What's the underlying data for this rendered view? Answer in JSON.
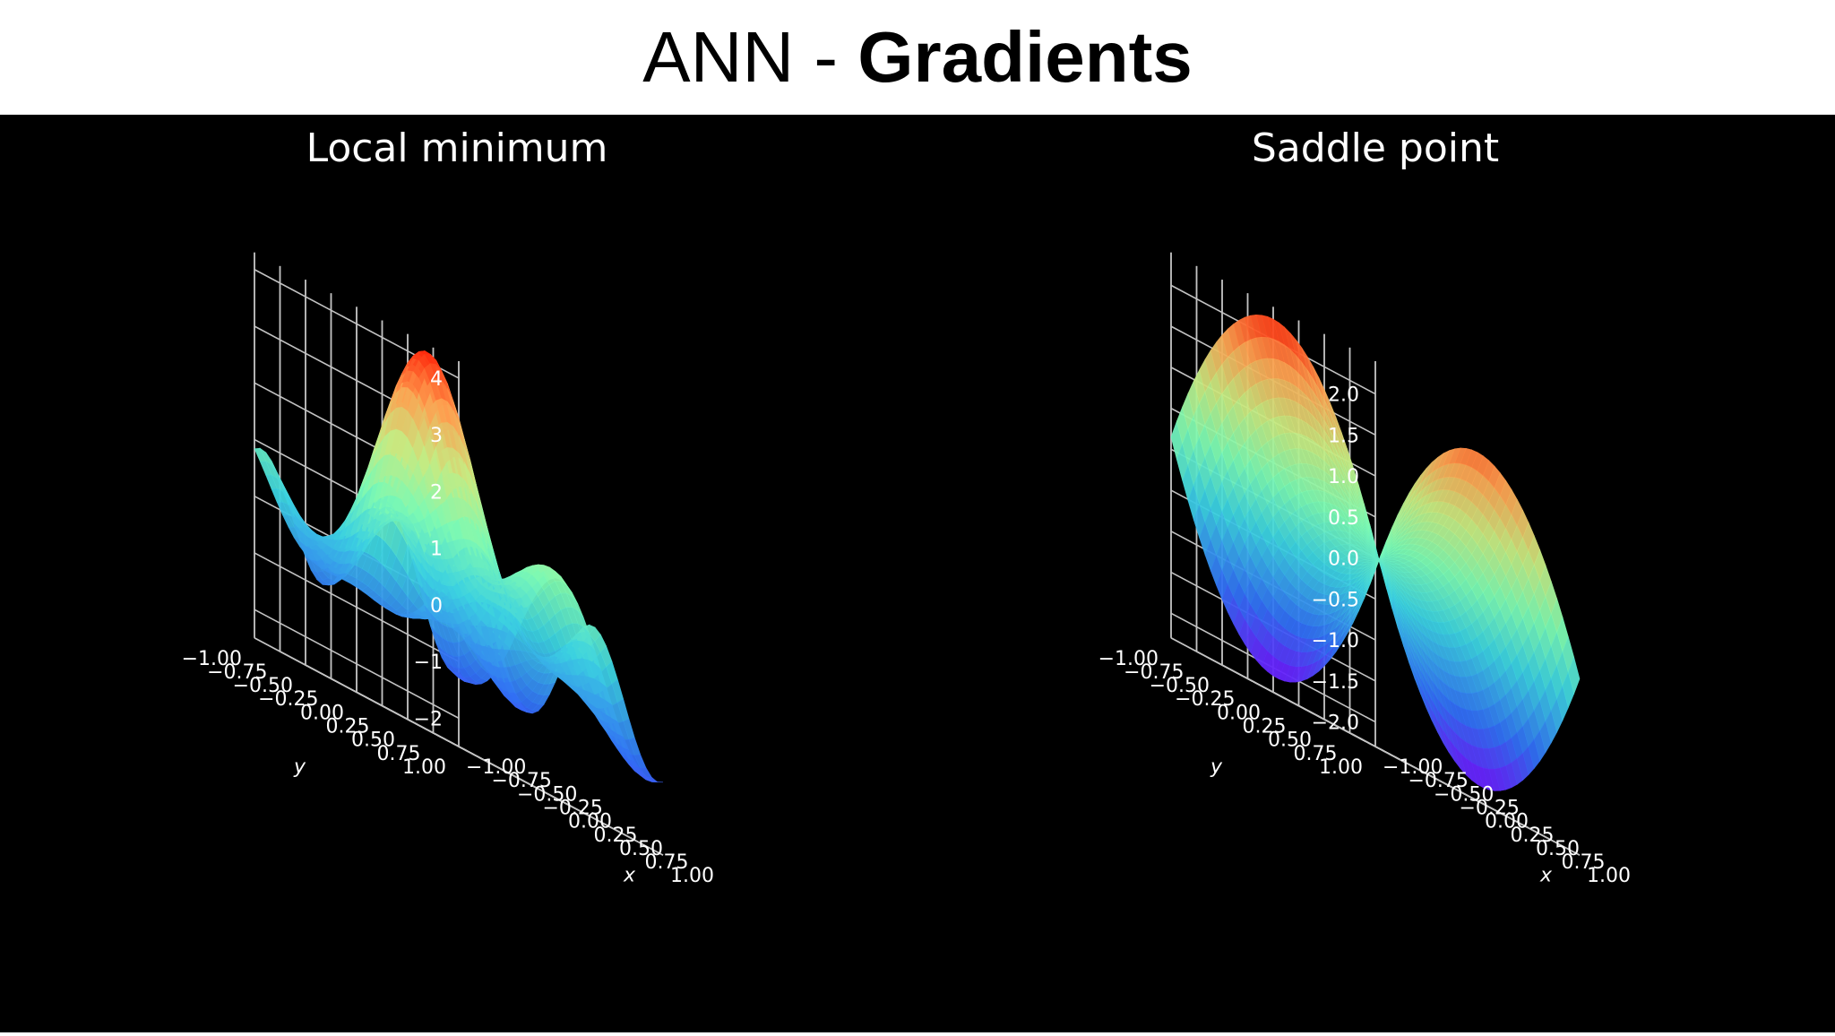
{
  "slide": {
    "title_prefix": "ANN - ",
    "title_bold": "Gradients"
  },
  "chart_data": [
    {
      "type": "surface",
      "title": "Local minimum",
      "xlabel": "x",
      "ylabel": "y",
      "x_ticks": [
        "−1.00",
        "−0.75",
        "−0.50",
        "−0.25",
        "0.00",
        "0.25",
        "0.50",
        "0.75",
        "1.00"
      ],
      "y_ticks": [
        "−1.00",
        "−0.75",
        "−0.50",
        "−0.25",
        "0.00",
        "0.25",
        "0.50",
        "0.75",
        "1.00"
      ],
      "z_ticks": [
        "−2",
        "−1",
        "0",
        "1",
        "2",
        "3",
        "4"
      ],
      "xlim": [
        -1,
        1
      ],
      "ylim": [
        -1,
        1
      ],
      "zlim": [
        -2.5,
        4.3
      ],
      "colormap": "rainbow",
      "background": "#000000",
      "grid": true
    },
    {
      "type": "surface",
      "title": "Saddle point",
      "xlabel": "x",
      "ylabel": "y",
      "x_ticks": [
        "−1.00",
        "−0.75",
        "−0.50",
        "−0.25",
        "0.00",
        "0.25",
        "0.50",
        "0.75",
        "1.00"
      ],
      "y_ticks": [
        "−1.00",
        "−0.75",
        "−0.50",
        "−0.25",
        "0.00",
        "0.25",
        "0.50",
        "0.75",
        "1.00"
      ],
      "z_ticks": [
        "−2.0",
        "−1.5",
        "−1.0",
        "−0.5",
        "0.0",
        "0.5",
        "1.0",
        "1.5",
        "2.0"
      ],
      "xlim": [
        -1,
        1
      ],
      "ylim": [
        -1,
        1
      ],
      "zlim": [
        -2.3,
        2.4
      ],
      "colormap": "rainbow",
      "background": "#000000",
      "grid": true
    }
  ]
}
